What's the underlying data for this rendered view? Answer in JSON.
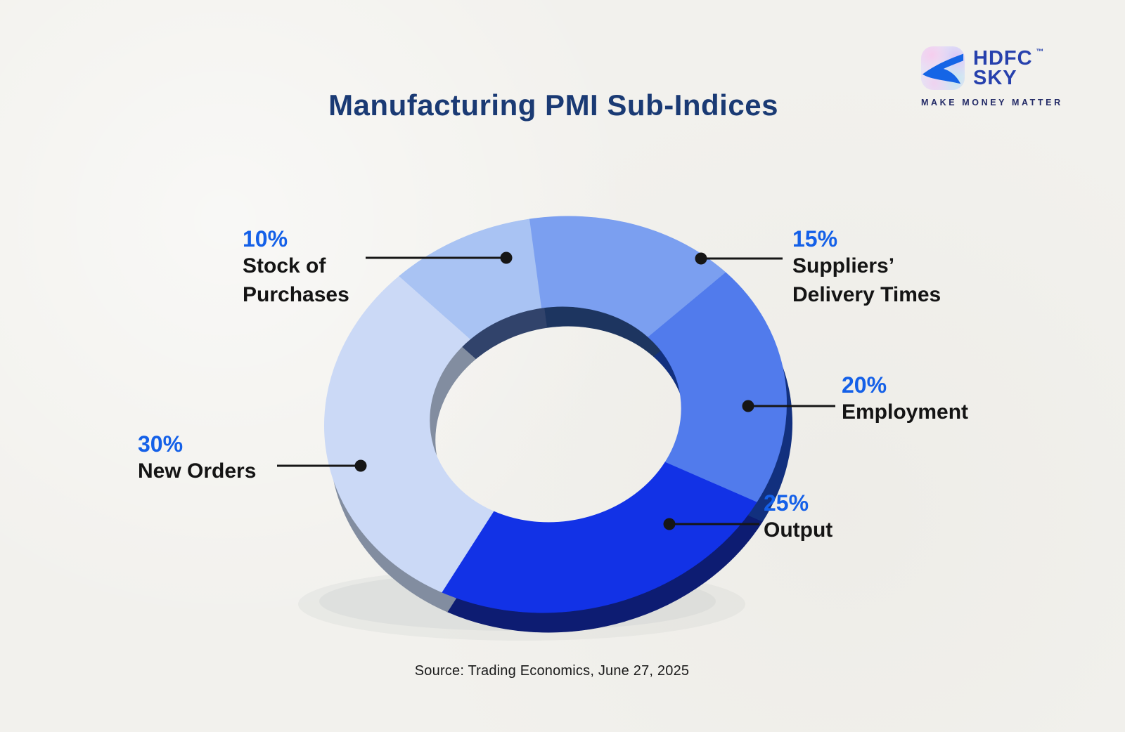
{
  "header": {
    "title": "Manufacturing PMI Sub-Indices"
  },
  "branding": {
    "name_line1": "HDFC",
    "name_line2": "SKY",
    "trademark": "™",
    "tagline": "MAKE MONEY MATTER"
  },
  "callouts": {
    "stock": {
      "pct": "10%",
      "line1": "Stock of",
      "line2": "Purchases"
    },
    "suppliers": {
      "pct": "15%",
      "line1": "Suppliers’",
      "line2": "Delivery Times"
    },
    "employment": {
      "pct": "20%",
      "line1": "Employment"
    },
    "output": {
      "pct": "25%",
      "line1": "Output"
    },
    "new_orders": {
      "pct": "30%",
      "line1": "New Orders"
    }
  },
  "source": "Source: Trading Economics, June 27, 2025",
  "colors": {
    "background": "#f2f1ed",
    "title_navy": "#1a3a74",
    "accent_blue": "#1460e8",
    "text_black": "#141414",
    "leader_line": "#161616",
    "logo_blue": "#2741ad",
    "tagline_navy": "#232a66"
  },
  "chart_data": {
    "type": "pie",
    "variant": "3d-donut",
    "title": "Manufacturing PMI Sub-Indices",
    "unit": "%",
    "direction": "clockwise",
    "start_angle_deg": 2,
    "donut_hole_ratio": 0.545,
    "legend_position": "callouts",
    "slices": [
      {
        "label": "Suppliers’ Delivery Times",
        "value": 15,
        "color": "#7b9ff0",
        "depth_color": "#1d3560"
      },
      {
        "label": "Employment",
        "value": 20,
        "color": "#517bec",
        "depth_color": "#12307e"
      },
      {
        "label": "Output",
        "value": 25,
        "color": "#1232e6",
        "depth_color": "#0d1c72"
      },
      {
        "label": "New Orders",
        "value": 30,
        "color": "#cbd9f6",
        "depth_color": "#828da0"
      },
      {
        "label": "Stock of Purchases",
        "value": 10,
        "color": "#a9c3f3",
        "depth_color": "#31436b"
      }
    ]
  }
}
